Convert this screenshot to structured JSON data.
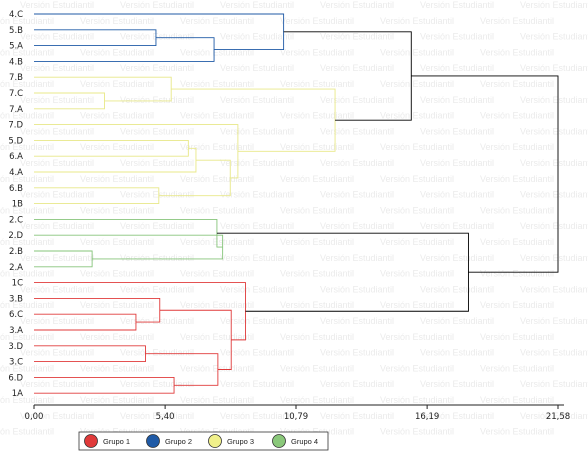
{
  "chart_data": {
    "type": "dendrogram",
    "title": "",
    "xlabel": "",
    "ylabel": "",
    "xlim": [
      0,
      21.58
    ],
    "x_ticks": [
      "0,00",
      "5,40",
      "10,79",
      "16,19",
      "21,58"
    ],
    "x_tick_values": [
      0,
      5.4,
      10.79,
      16.19,
      21.58
    ],
    "watermark": "Versión Estudiantil",
    "leaves": [
      "4.C",
      "5.B",
      "5.A",
      "4.B",
      "7.B",
      "7.C",
      "7.A",
      "7.D",
      "5.D",
      "6.A",
      "4.A",
      "6.B",
      "1B",
      "2.C",
      "2.D",
      "2.B",
      "2.A",
      "1C",
      "3.B",
      "6.C",
      "3.A",
      "3.D",
      "3.C",
      "6.D",
      "1A"
    ],
    "merges": [
      {
        "a": "5.B",
        "b": "5.A",
        "height": 12.8,
        "group": "g2"
      },
      {
        "a": "5.B|5.A",
        "b": "4.B",
        "height": 18.9,
        "group": "g2"
      },
      {
        "a": "4.C",
        "b": "5.B|5.A|4.B",
        "height": 26.2,
        "group": "g2"
      },
      {
        "a": "7.C",
        "b": "7.A",
        "height": 7.4,
        "group": "g3"
      },
      {
        "a": "7.B",
        "b": "7.C|7.A",
        "height": 14.4,
        "group": "g3"
      },
      {
        "a": "5.D",
        "b": "6.A",
        "height": 16.2,
        "group": "g3"
      },
      {
        "a": "5.D|6.A",
        "b": "4.A",
        "height": 17.0,
        "group": "g3"
      },
      {
        "a": "6.B",
        "b": "1B",
        "height": 13.1,
        "group": "g3"
      },
      {
        "a": "5.D|6.A|4.A",
        "b": "6.B|1B",
        "height": 20.6,
        "group": "g3"
      },
      {
        "a": "7.D",
        "b": "5.D|6.A|4.A|6.B|1B",
        "height": 21.4,
        "group": "g3"
      },
      {
        "a": "7.B|7.C|7.A",
        "b": "7.D|5.D|6.A|4.A|6.B|1B",
        "height": 31.6,
        "group": "g3"
      },
      {
        "a": "G2",
        "b": "G3",
        "height": 39.6,
        "group": "root"
      },
      {
        "a": "2.B",
        "b": "2.A",
        "height": 6.1,
        "group": "g4"
      },
      {
        "a": "2.D",
        "b": "2.B|2.A",
        "height": 19.8,
        "group": "g4"
      },
      {
        "a": "2.C",
        "b": "2.D|2.B|2.A",
        "height": 19.2,
        "group": "g4"
      },
      {
        "a": "6.C",
        "b": "3.A",
        "height": 10.7,
        "group": "g1"
      },
      {
        "a": "3.B",
        "b": "6.C|3.A",
        "height": 13.2,
        "group": "g1"
      },
      {
        "a": "3.D",
        "b": "3.C",
        "height": 11.7,
        "group": "g1"
      },
      {
        "a": "6.D",
        "b": "1A",
        "height": 14.7,
        "group": "g1"
      },
      {
        "a": "3.D|3.C",
        "b": "6.D|1A",
        "height": 19.3,
        "group": "g1"
      },
      {
        "a": "3.B|6.C|3.A",
        "b": "3.D|3.C|6.D|1A",
        "height": 20.7,
        "group": "g1"
      },
      {
        "a": "1C",
        "b": "3.B|6.C|3.A|3.D|3.C|6.D|1A",
        "height": 22.2,
        "group": "g1"
      },
      {
        "a": "G4",
        "b": "G1",
        "height": 45.6,
        "group": "root"
      },
      {
        "a": "G2|G3",
        "b": "G4|G1",
        "height": 55.0,
        "group": "root"
      }
    ],
    "legend": {
      "position": "bottom",
      "items": [
        {
          "label": "Grupo 1",
          "color": "#e03a3a",
          "group": "g1"
        },
        {
          "label": "Grupo 2",
          "color": "#1f5aa6",
          "group": "g2"
        },
        {
          "label": "Grupo 3",
          "color": "#f0f08a",
          "group": "g3"
        },
        {
          "label": "Grupo 4",
          "color": "#8ac87a",
          "group": "g4"
        }
      ]
    },
    "colors": {
      "g1": "#e03a3a",
      "g2": "#1f5aa6",
      "g3": "#e8e888",
      "g4": "#86c47a",
      "root": "#000000"
    }
  }
}
